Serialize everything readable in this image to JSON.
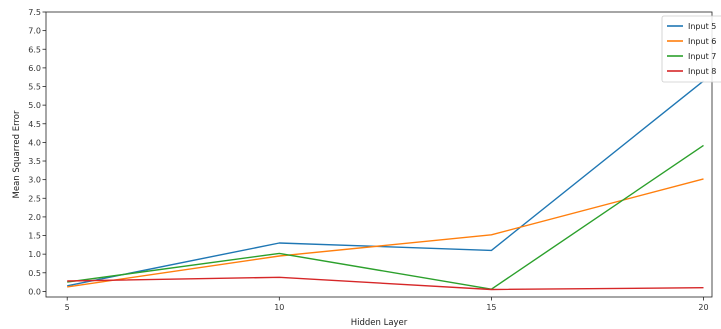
{
  "chart_data": {
    "type": "line",
    "xlabel": "Hidden Layer",
    "ylabel": "Mean Squarred Error",
    "x": [
      5,
      10,
      15,
      20
    ],
    "xticks": [
      "5",
      "10",
      "15",
      "20"
    ],
    "yticks": [
      "0.0",
      "0.5",
      "1.0",
      "1.5",
      "2.0",
      "2.5",
      "3.0",
      "3.5",
      "4.0",
      "4.5",
      "5.0",
      "5.5",
      "6.0",
      "6.5",
      "7.0",
      "7.5"
    ],
    "xlim": [
      4.5,
      20.2
    ],
    "ylim": [
      -0.15,
      7.5
    ],
    "grid": false,
    "legend_position": "top-right",
    "series": [
      {
        "name": "Input 5",
        "color": "#1f77b4",
        "values": [
          0.15,
          1.3,
          1.1,
          5.65
        ]
      },
      {
        "name": "Input 6",
        "color": "#ff7f0e",
        "values": [
          0.12,
          0.95,
          1.52,
          3.02
        ]
      },
      {
        "name": "Input 7",
        "color": "#2ca02c",
        "values": [
          0.25,
          1.02,
          0.06,
          3.92
        ]
      },
      {
        "name": "Input 8",
        "color": "#d62728",
        "values": [
          0.28,
          0.38,
          0.05,
          0.1
        ]
      }
    ]
  }
}
